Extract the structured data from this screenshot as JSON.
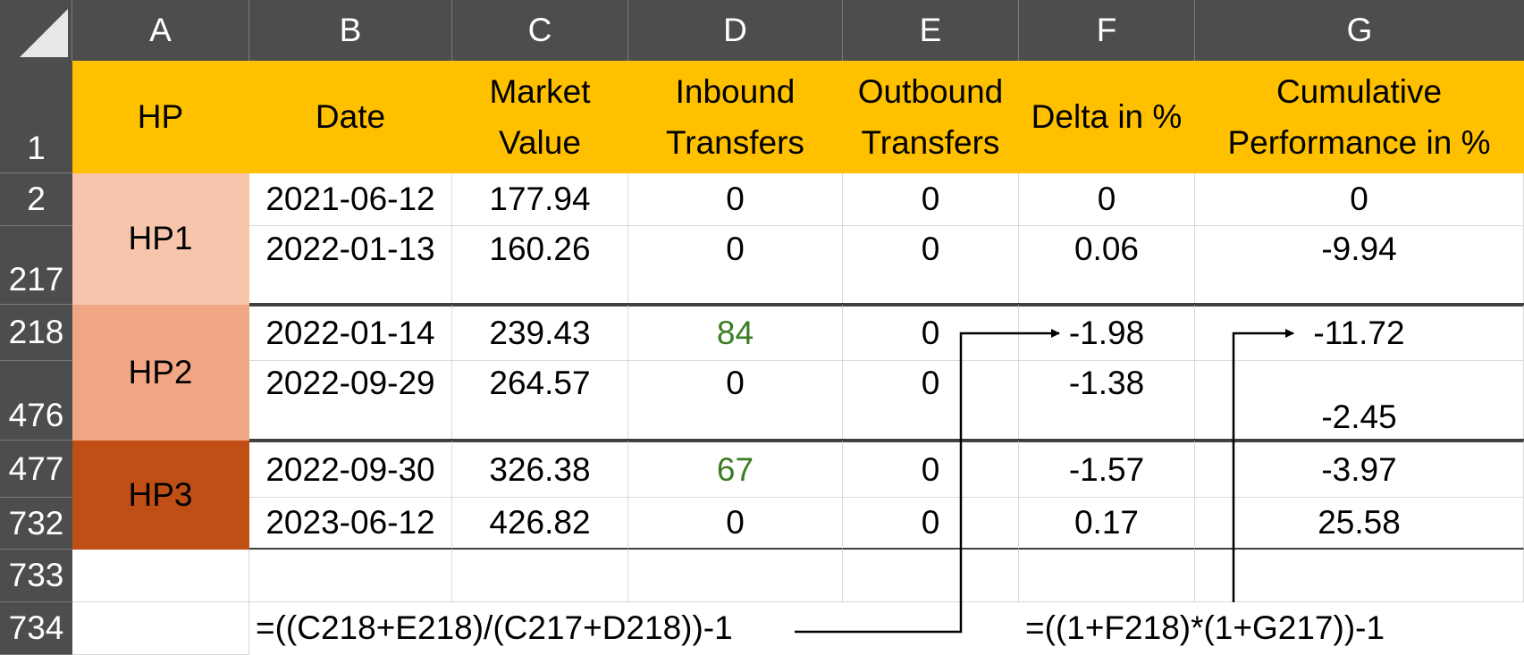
{
  "columns": [
    "A",
    "B",
    "C",
    "D",
    "E",
    "F",
    "G"
  ],
  "row_numbers": [
    "1",
    "2",
    "217",
    "218",
    "476",
    "477",
    "732",
    "733",
    "734"
  ],
  "headers": {
    "hp": "HP",
    "date": "Date",
    "market_value": [
      "Market",
      "Value"
    ],
    "inbound": [
      "Inbound",
      "Transfers"
    ],
    "outbound": [
      "Outbound",
      "Transfers"
    ],
    "delta": "Delta in %",
    "cumulative": [
      "Cumulative",
      "Performance in %"
    ]
  },
  "groups": [
    {
      "label": "HP1",
      "color": "#f6c5ab"
    },
    {
      "label": "HP2",
      "color": "#f1a783"
    },
    {
      "label": "HP3",
      "color": "#c04f15"
    }
  ],
  "rows": [
    {
      "date": "2021-06-12",
      "mv": "177.94",
      "inb": "0",
      "outb": "0",
      "delta": "0",
      "cum": "0"
    },
    {
      "date": "2022-01-13",
      "mv": "160.26",
      "inb": "0",
      "outb": "0",
      "delta": "0.06",
      "cum": "-9.94"
    },
    {
      "date": "2022-01-14",
      "mv": "239.43",
      "inb": "84",
      "outb": "0",
      "delta": "-1.98",
      "cum": "-11.72"
    },
    {
      "date": "2022-09-29",
      "mv": "264.57",
      "inb": "0",
      "outb": "0",
      "delta": "-1.38",
      "cum": "-2.45"
    },
    {
      "date": "2022-09-30",
      "mv": "326.38",
      "inb": "67",
      "outb": "0",
      "delta": "-1.57",
      "cum": "-3.97"
    },
    {
      "date": "2023-06-12",
      "mv": "426.82",
      "inb": "0",
      "outb": "0",
      "delta": "0.17",
      "cum": "25.58"
    }
  ],
  "formulas": {
    "delta": "=((C218+E218)/(C217+D218))-1",
    "cumulative": "=((1+F218)*(1+G217))-1"
  },
  "colors": {
    "header_fill": "#ffc000",
    "transfer_highlight": "#3a7d22",
    "sheet_chrome": "#4d4d4d"
  }
}
